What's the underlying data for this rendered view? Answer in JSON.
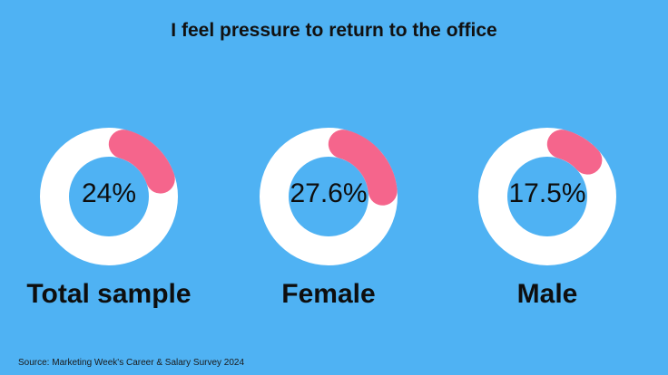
{
  "chart_data": {
    "type": "donut",
    "title": "I feel pressure to return to the office",
    "categories": [
      "Total sample",
      "Female",
      "Male"
    ],
    "values": [
      24,
      27.6,
      17.5
    ],
    "value_labels": [
      "24%",
      "27.6%",
      "17.5%"
    ],
    "unit": "%"
  },
  "colors": {
    "background": "#4fb2f3",
    "ring": "#ffffff",
    "highlight": "#f5658c"
  },
  "source": "Source: Marketing Week's Career & Salary Survey 2024"
}
